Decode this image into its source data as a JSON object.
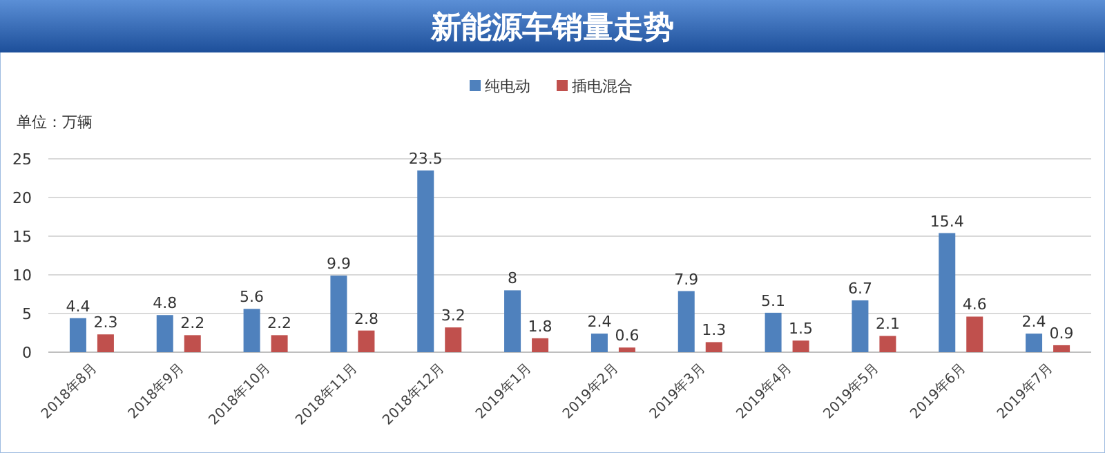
{
  "chart_data": {
    "type": "bar",
    "title": "新能源车销量走势",
    "annotations": [
      "单位：万辆"
    ],
    "categories": [
      "2018年8月",
      "2018年9月",
      "2018年10月",
      "2018年11月",
      "2018年12月",
      "2019年1月",
      "2019年2月",
      "2019年3月",
      "2019年4月",
      "2019年5月",
      "2019年6月",
      "2019年7月"
    ],
    "series": [
      {
        "name": "纯电动",
        "color": "#4f81bd",
        "values": [
          4.4,
          4.8,
          5.6,
          9.9,
          23.5,
          8,
          2.4,
          7.9,
          5.1,
          6.7,
          15.4,
          2.4
        ]
      },
      {
        "name": "插电混合",
        "color": "#c0504d",
        "values": [
          2.3,
          2.2,
          2.2,
          2.8,
          3.2,
          1.8,
          0.6,
          1.3,
          1.5,
          2.1,
          4.6,
          0.9
        ]
      }
    ],
    "ylim": [
      0,
      25
    ],
    "yticks": [
      0,
      5,
      10,
      15,
      20,
      25
    ],
    "grid": "y",
    "legend": "top",
    "data_labels": true
  }
}
